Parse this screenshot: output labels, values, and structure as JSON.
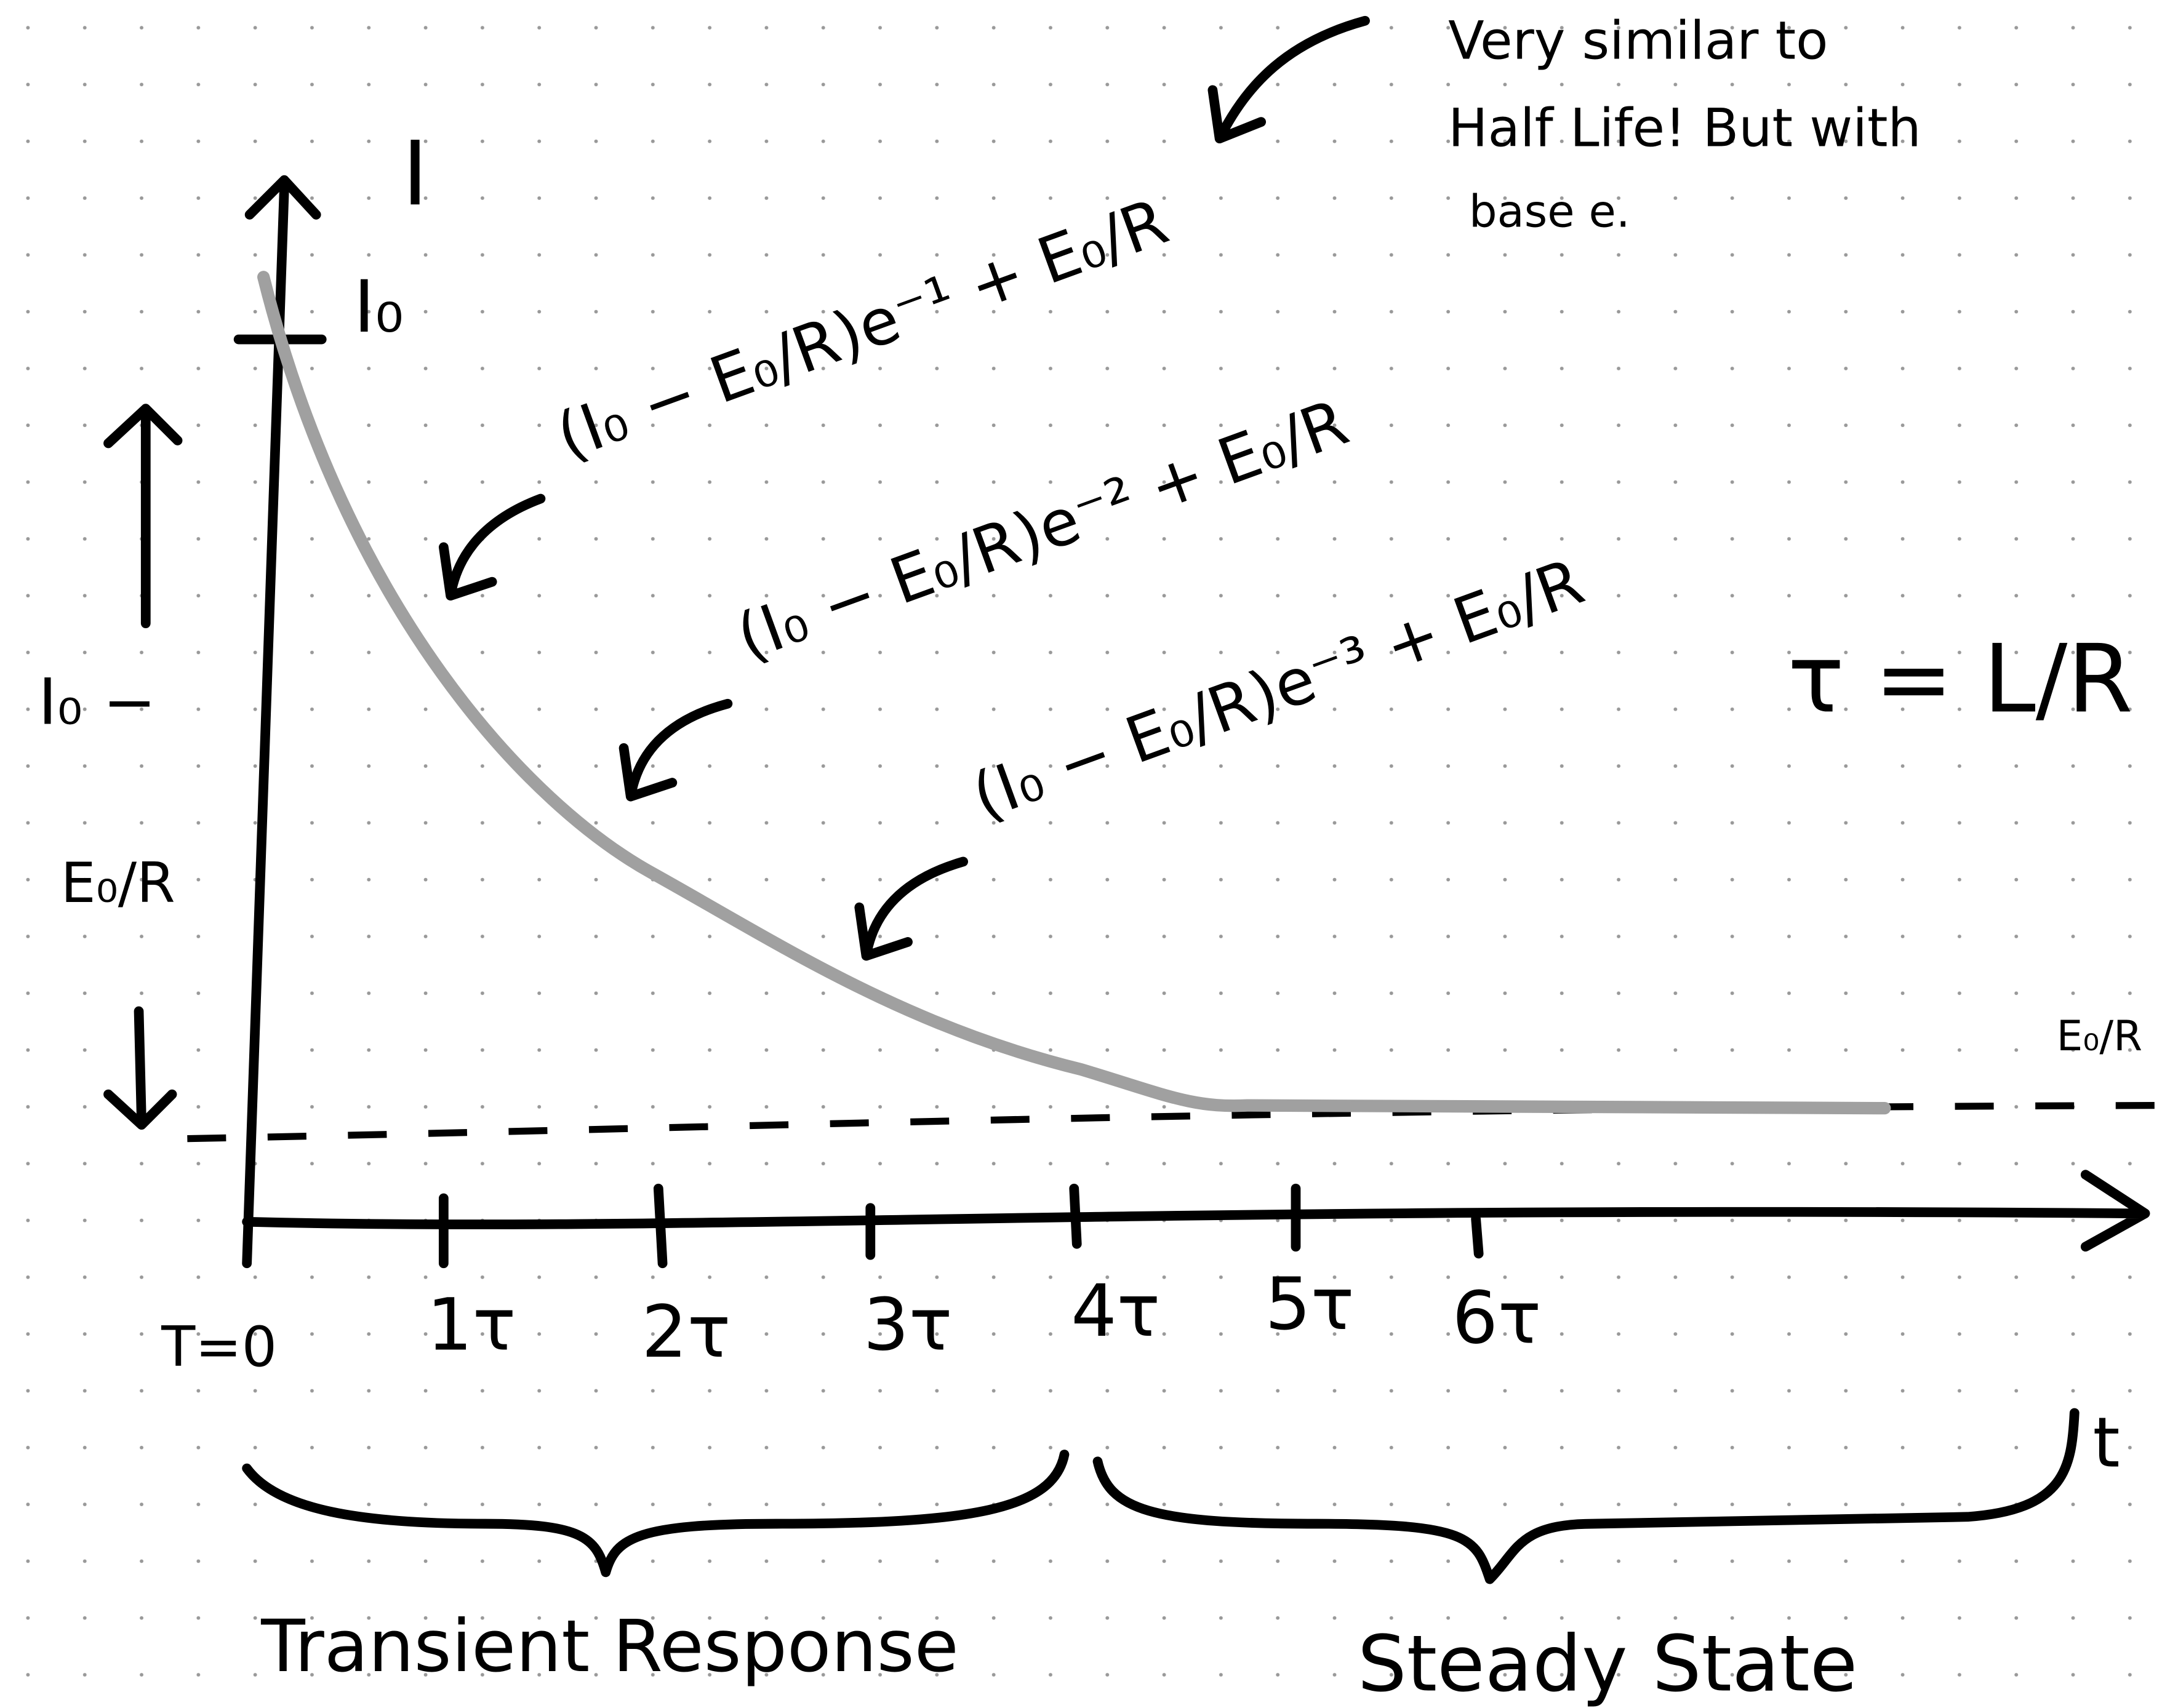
{
  "axes": {
    "y_label": "I",
    "x_label": "t",
    "i0_label": "I₀",
    "steady_label": "E₀/R",
    "delta_label": [
      "I₀ −",
      "E₀/R"
    ]
  },
  "ticks": [
    "T=0",
    "1τ",
    "2τ",
    "3τ",
    "4τ",
    "5τ",
    "6τ"
  ],
  "curve_labels": [
    "(I₀ − E₀/R)e⁻¹ + E₀/R",
    "(I₀ − E₀/R)e⁻² + E₀/R",
    "(I₀ − E₀/R)e⁻³ + E₀/R"
  ],
  "note": [
    "Very similar to",
    "Half Life! But with",
    "base e."
  ],
  "tau_definition": "τ = L/R",
  "regions": [
    "Transient Response",
    "Steady State"
  ]
}
